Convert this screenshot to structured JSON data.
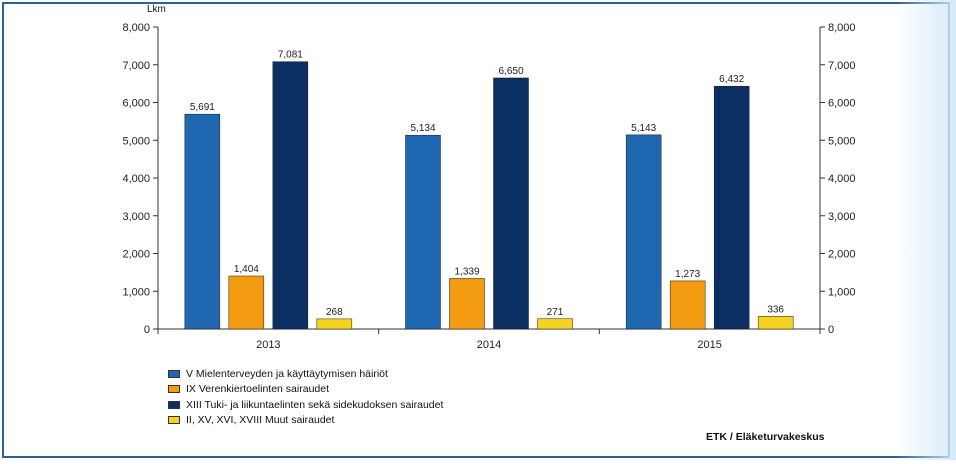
{
  "chart_data": {
    "type": "bar",
    "ylabel": "Lkm",
    "categories": [
      "2013",
      "2014",
      "2015"
    ],
    "ylim": [
      0,
      8000
    ],
    "yticks": [
      "0",
      "1,000",
      "2,000",
      "3,000",
      "4,000",
      "5,000",
      "6,000",
      "7,000",
      "8,000"
    ],
    "secondary_axis": true,
    "grid": false,
    "legend_position": "bottom-left",
    "series": [
      {
        "name": "V Mielenterveyden ja käyttäytymisen häiriöt",
        "color": "#1f67b0",
        "values": [
          5691,
          5134,
          5143
        ],
        "labels": [
          "5,691",
          "5,134",
          "5,143"
        ]
      },
      {
        "name": "IX Verenkiertoelinten sairaudet",
        "color": "#f39c12",
        "values": [
          1404,
          1339,
          1273
        ],
        "labels": [
          "1,404",
          "1,339",
          "1,273"
        ]
      },
      {
        "name": "XIII Tuki- ja liikuntaelinten sekä sidekudoksen sairaudet",
        "color": "#0c2f63",
        "values": [
          7081,
          6650,
          6432
        ],
        "labels": [
          "7,081",
          "6,650",
          "6,432"
        ]
      },
      {
        "name": "II, XV, XVI, XVIII Muut sairaudet",
        "color": "#f5d320",
        "values": [
          268,
          271,
          336
        ],
        "labels": [
          "268",
          "271",
          "336"
        ]
      }
    ]
  },
  "source": "ETK / Eläketurvakeskus"
}
